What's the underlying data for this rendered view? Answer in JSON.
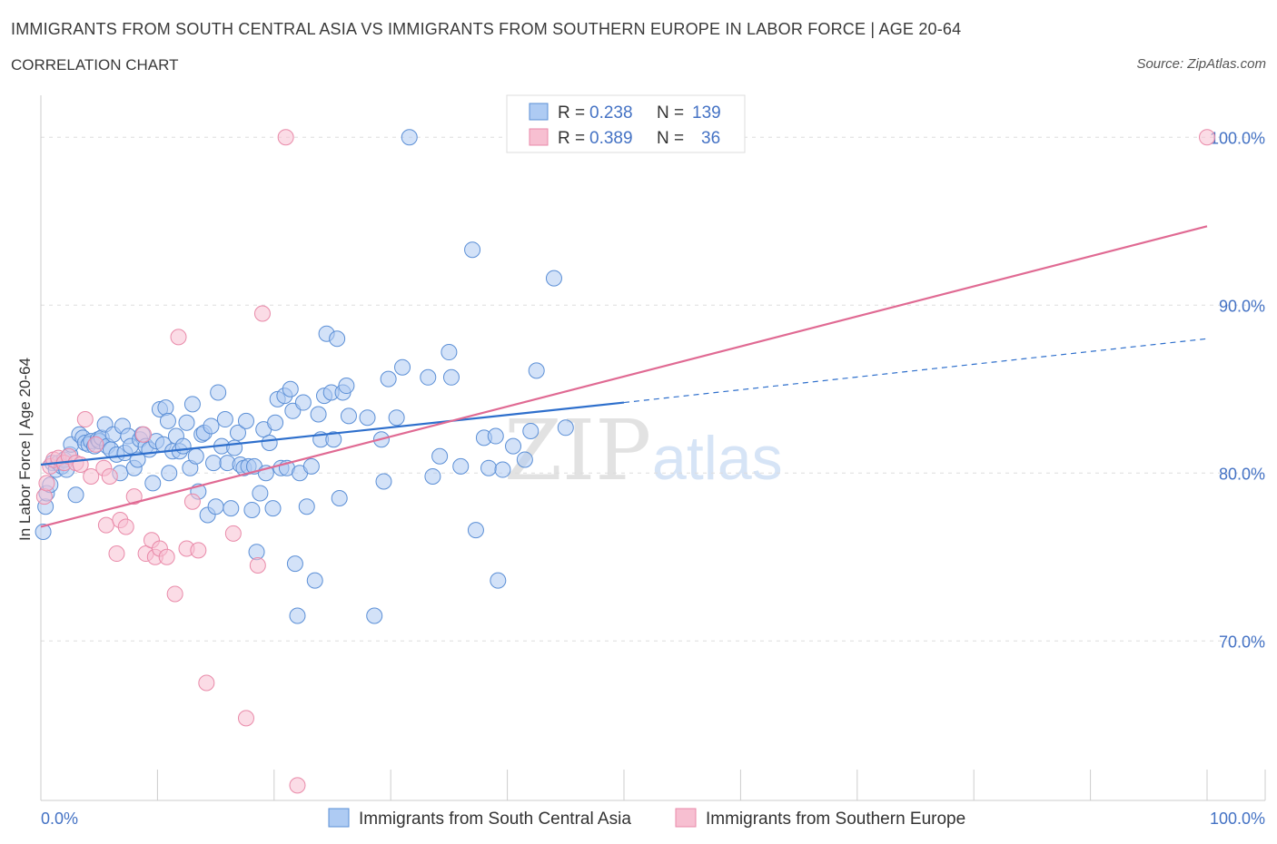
{
  "header": {
    "title": "IMMIGRANTS FROM SOUTH CENTRAL ASIA VS IMMIGRANTS FROM SOUTHERN EUROPE IN LABOR FORCE | AGE 20-64",
    "subtitle": "CORRELATION CHART",
    "source": "Source: ZipAtlas.com"
  },
  "watermark": {
    "zip": "ZIP",
    "atlas": "atlas"
  },
  "colors": {
    "blue_fill": "#aecbf3",
    "blue_stroke": "#5b8fd6",
    "blue_line": "#2e6fcc",
    "pink_fill": "#f7bfd1",
    "pink_stroke": "#e98aa9",
    "pink_line": "#e06a93",
    "tick_text": "#4472c4",
    "grid": "#dddddd"
  },
  "legend": {
    "rows": [
      {
        "r_label": "R =",
        "r_value": "0.238",
        "n_label": "N =",
        "n_value": "139"
      },
      {
        "r_label": "R =",
        "r_value": "0.389",
        "n_label": "N =",
        "n_value": "36"
      }
    ]
  },
  "chart_data": {
    "type": "scatter",
    "title": "IMMIGRANTS FROM SOUTH CENTRAL ASIA VS IMMIGRANTS FROM SOUTHERN EUROPE IN LABOR FORCE | AGE 20-64",
    "xlabel": "",
    "ylabel": "In Labor Force | Age 20-64",
    "xlim": [
      0,
      100
    ],
    "ylim": [
      60.5,
      102.5
    ],
    "x_tick_labels": [
      "0.0%",
      "100.0%"
    ],
    "y_ticks": [
      70,
      80,
      90,
      100
    ],
    "y_tick_labels": [
      "70.0%",
      "80.0%",
      "90.0%",
      "100.0%"
    ],
    "grid": true,
    "legend_position": "top-center",
    "series": [
      {
        "name": "Immigrants from South Central Asia",
        "color": "#aecbf3",
        "r": 0.238,
        "n": 139,
        "trend": {
          "x0": 0,
          "y0": 80.5,
          "x1": 50,
          "y1": 84.2,
          "dash_x1": 100,
          "dash_y1": 88.0
        },
        "points": [
          [
            0.2,
            76.5
          ],
          [
            0.4,
            78.0
          ],
          [
            0.5,
            78.8
          ],
          [
            0.8,
            79.3
          ],
          [
            1.0,
            80.6
          ],
          [
            1.3,
            80.2
          ],
          [
            1.5,
            80.6
          ],
          [
            1.8,
            80.4
          ],
          [
            2.0,
            80.8
          ],
          [
            2.2,
            80.2
          ],
          [
            2.5,
            81.1
          ],
          [
            2.6,
            81.7
          ],
          [
            3.0,
            78.7
          ],
          [
            3.3,
            82.3
          ],
          [
            3.6,
            82.1
          ],
          [
            3.8,
            81.8
          ],
          [
            4.1,
            81.7
          ],
          [
            4.3,
            81.9
          ],
          [
            4.6,
            81.6
          ],
          [
            4.9,
            82.0
          ],
          [
            5.0,
            81.9
          ],
          [
            5.2,
            82.1
          ],
          [
            5.5,
            82.9
          ],
          [
            5.7,
            81.6
          ],
          [
            6.0,
            81.4
          ],
          [
            6.2,
            82.3
          ],
          [
            6.5,
            81.1
          ],
          [
            6.8,
            80.0
          ],
          [
            7.0,
            82.8
          ],
          [
            7.2,
            81.2
          ],
          [
            7.5,
            82.2
          ],
          [
            7.7,
            81.6
          ],
          [
            8.0,
            80.3
          ],
          [
            8.3,
            80.8
          ],
          [
            8.5,
            82.0
          ],
          [
            8.7,
            82.3
          ],
          [
            9.0,
            81.6
          ],
          [
            9.3,
            81.4
          ],
          [
            9.6,
            79.4
          ],
          [
            9.9,
            81.9
          ],
          [
            10.2,
            83.8
          ],
          [
            10.5,
            81.7
          ],
          [
            10.7,
            83.9
          ],
          [
            10.9,
            83.1
          ],
          [
            11.0,
            80.0
          ],
          [
            11.3,
            81.3
          ],
          [
            11.6,
            82.2
          ],
          [
            11.9,
            81.3
          ],
          [
            12.2,
            81.6
          ],
          [
            12.5,
            83.0
          ],
          [
            12.8,
            80.3
          ],
          [
            13.0,
            84.1
          ],
          [
            13.3,
            81.0
          ],
          [
            13.5,
            78.9
          ],
          [
            13.8,
            82.3
          ],
          [
            14.0,
            82.4
          ],
          [
            14.3,
            77.5
          ],
          [
            14.6,
            82.8
          ],
          [
            14.8,
            80.6
          ],
          [
            15.0,
            78.0
          ],
          [
            15.2,
            84.8
          ],
          [
            15.5,
            81.6
          ],
          [
            15.8,
            83.2
          ],
          [
            16.0,
            80.6
          ],
          [
            16.3,
            77.9
          ],
          [
            16.6,
            81.5
          ],
          [
            16.9,
            82.4
          ],
          [
            17.1,
            80.5
          ],
          [
            17.4,
            80.3
          ],
          [
            17.6,
            83.1
          ],
          [
            17.8,
            80.4
          ],
          [
            18.1,
            77.8
          ],
          [
            18.3,
            80.4
          ],
          [
            18.5,
            75.3
          ],
          [
            18.8,
            78.8
          ],
          [
            19.1,
            82.6
          ],
          [
            19.3,
            80.0
          ],
          [
            19.6,
            81.8
          ],
          [
            19.9,
            77.9
          ],
          [
            20.1,
            83.0
          ],
          [
            20.3,
            84.4
          ],
          [
            20.6,
            80.3
          ],
          [
            20.9,
            84.6
          ],
          [
            21.1,
            80.3
          ],
          [
            21.4,
            85.0
          ],
          [
            21.6,
            83.7
          ],
          [
            21.8,
            74.6
          ],
          [
            22.0,
            71.5
          ],
          [
            22.2,
            80.0
          ],
          [
            22.5,
            84.2
          ],
          [
            22.8,
            78.0
          ],
          [
            23.2,
            80.4
          ],
          [
            23.5,
            73.6
          ],
          [
            23.8,
            83.5
          ],
          [
            24.0,
            82.0
          ],
          [
            24.3,
            84.6
          ],
          [
            24.5,
            88.3
          ],
          [
            24.9,
            84.8
          ],
          [
            25.1,
            82.0
          ],
          [
            25.4,
            88.0
          ],
          [
            25.6,
            78.5
          ],
          [
            25.9,
            84.8
          ],
          [
            26.2,
            85.2
          ],
          [
            26.4,
            83.4
          ],
          [
            28.0,
            83.3
          ],
          [
            28.6,
            71.5
          ],
          [
            29.2,
            82.0
          ],
          [
            29.4,
            79.5
          ],
          [
            29.8,
            85.6
          ],
          [
            30.5,
            83.3
          ],
          [
            31.0,
            86.3
          ],
          [
            31.6,
            100.0
          ],
          [
            33.2,
            85.7
          ],
          [
            33.6,
            79.8
          ],
          [
            34.2,
            81.0
          ],
          [
            35.0,
            87.2
          ],
          [
            35.2,
            85.7
          ],
          [
            36.0,
            80.4
          ],
          [
            37.0,
            93.3
          ],
          [
            37.3,
            76.6
          ],
          [
            38.0,
            82.1
          ],
          [
            38.4,
            80.3
          ],
          [
            39.0,
            82.2
          ],
          [
            39.2,
            73.6
          ],
          [
            39.6,
            80.2
          ],
          [
            40.5,
            81.6
          ],
          [
            41.5,
            80.8
          ],
          [
            42.0,
            82.5
          ],
          [
            42.5,
            86.1
          ],
          [
            44.0,
            91.6
          ],
          [
            45.0,
            82.7
          ]
        ]
      },
      {
        "name": "Immigrants from Southern Europe",
        "color": "#f7bfd1",
        "r": 0.389,
        "n": 36,
        "trend": {
          "x0": 0,
          "y0": 76.8,
          "x1": 100,
          "y1": 94.7
        },
        "points": [
          [
            0.3,
            78.6
          ],
          [
            0.5,
            79.4
          ],
          [
            0.8,
            80.4
          ],
          [
            1.1,
            80.8
          ],
          [
            1.5,
            80.9
          ],
          [
            2.0,
            80.6
          ],
          [
            2.4,
            81.0
          ],
          [
            3.0,
            80.6
          ],
          [
            3.4,
            80.5
          ],
          [
            3.8,
            83.2
          ],
          [
            4.3,
            79.8
          ],
          [
            4.7,
            81.7
          ],
          [
            5.4,
            80.3
          ],
          [
            5.6,
            76.9
          ],
          [
            5.9,
            79.8
          ],
          [
            6.5,
            75.2
          ],
          [
            6.8,
            77.2
          ],
          [
            7.3,
            76.8
          ],
          [
            8.0,
            78.6
          ],
          [
            8.8,
            82.3
          ],
          [
            9.0,
            75.2
          ],
          [
            9.5,
            76.0
          ],
          [
            9.8,
            75.0
          ],
          [
            10.2,
            75.5
          ],
          [
            10.8,
            75.0
          ],
          [
            11.5,
            72.8
          ],
          [
            11.8,
            88.1
          ],
          [
            12.5,
            75.5
          ],
          [
            13.0,
            78.3
          ],
          [
            13.5,
            75.4
          ],
          [
            14.2,
            67.5
          ],
          [
            16.5,
            76.4
          ],
          [
            17.6,
            65.4
          ],
          [
            18.6,
            74.5
          ],
          [
            19.0,
            89.5
          ],
          [
            21.0,
            100.0
          ],
          [
            22.0,
            61.4
          ],
          [
            100.0,
            100.0
          ]
        ]
      }
    ]
  }
}
